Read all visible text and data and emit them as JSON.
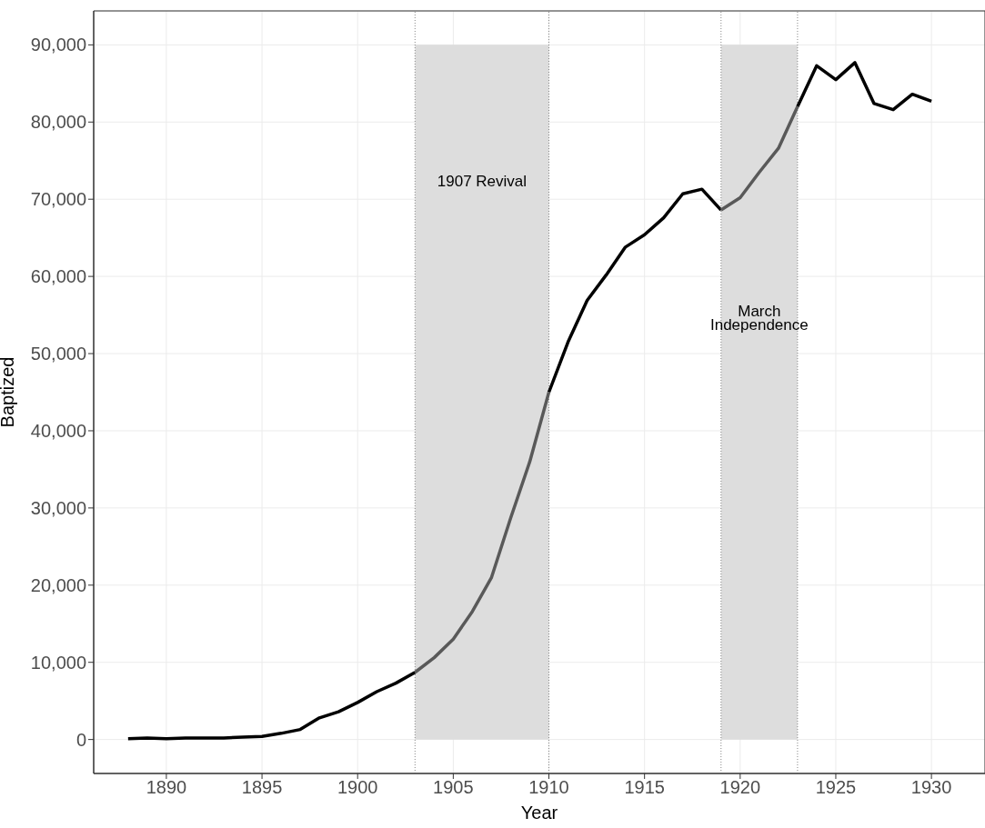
{
  "chart_data": {
    "type": "line",
    "xlabel": "Year",
    "ylabel": "Baptized",
    "x": [
      1888,
      1889,
      1890,
      1891,
      1892,
      1893,
      1894,
      1895,
      1896,
      1897,
      1898,
      1899,
      1900,
      1901,
      1902,
      1903,
      1904,
      1905,
      1906,
      1907,
      1908,
      1909,
      1910,
      1911,
      1912,
      1913,
      1914,
      1915,
      1916,
      1917,
      1918,
      1919,
      1920,
      1921,
      1922,
      1923,
      1924,
      1925,
      1926,
      1927,
      1928,
      1929,
      1930
    ],
    "series": [
      {
        "color": "#000000",
        "values": [
          100,
          200,
          100,
          200,
          200,
          200,
          300,
          400,
          800,
          1300,
          2800,
          3600,
          4800,
          6200,
          7300,
          8700,
          null,
          null,
          null,
          null,
          null,
          null,
          45000,
          51500,
          56900,
          60200,
          63800,
          65400,
          67600,
          70700,
          71300,
          68600,
          null,
          null,
          null,
          82000,
          87300,
          85500,
          87700,
          82400,
          81600,
          83600,
          82700
        ]
      },
      {
        "color": "#595959",
        "values": [
          null,
          null,
          null,
          null,
          null,
          null,
          null,
          null,
          null,
          null,
          null,
          null,
          null,
          null,
          null,
          8700,
          10600,
          13000,
          16600,
          21000,
          28700,
          36000,
          45000,
          null,
          null,
          null,
          null,
          null,
          null,
          null,
          null,
          68600,
          70200,
          73500,
          76600,
          82000,
          null,
          null,
          null,
          null,
          null,
          null,
          null
        ]
      }
    ],
    "xlim": [
      1886.2,
      1932.8
    ],
    "xticks": [
      1890,
      1895,
      1900,
      1905,
      1910,
      1915,
      1920,
      1925,
      1930
    ],
    "ylim": [
      -4400,
      94400
    ],
    "yticks": [
      {
        "value": 0,
        "label": "0"
      },
      {
        "value": 10000,
        "label": "10,000"
      },
      {
        "value": 20000,
        "label": "20,000"
      },
      {
        "value": 30000,
        "label": "30,000"
      },
      {
        "value": 40000,
        "label": "40,000"
      },
      {
        "value": 50000,
        "label": "50,000"
      },
      {
        "value": 60000,
        "label": "60,000"
      },
      {
        "value": 70000,
        "label": "70,000"
      },
      {
        "value": 80000,
        "label": "80,000"
      },
      {
        "value": 90000,
        "label": "90,000"
      }
    ],
    "bands": [
      {
        "axis": "x",
        "from": 1903,
        "to": 1910,
        "color": "#dddddd"
      },
      {
        "axis": "x",
        "from": 1919,
        "to": 1923,
        "color": "#dddddd"
      }
    ],
    "annotations": [
      "1907 Revival",
      "March\nIndependence"
    ],
    "grid": true,
    "line_style": "solid",
    "marker": "none"
  }
}
